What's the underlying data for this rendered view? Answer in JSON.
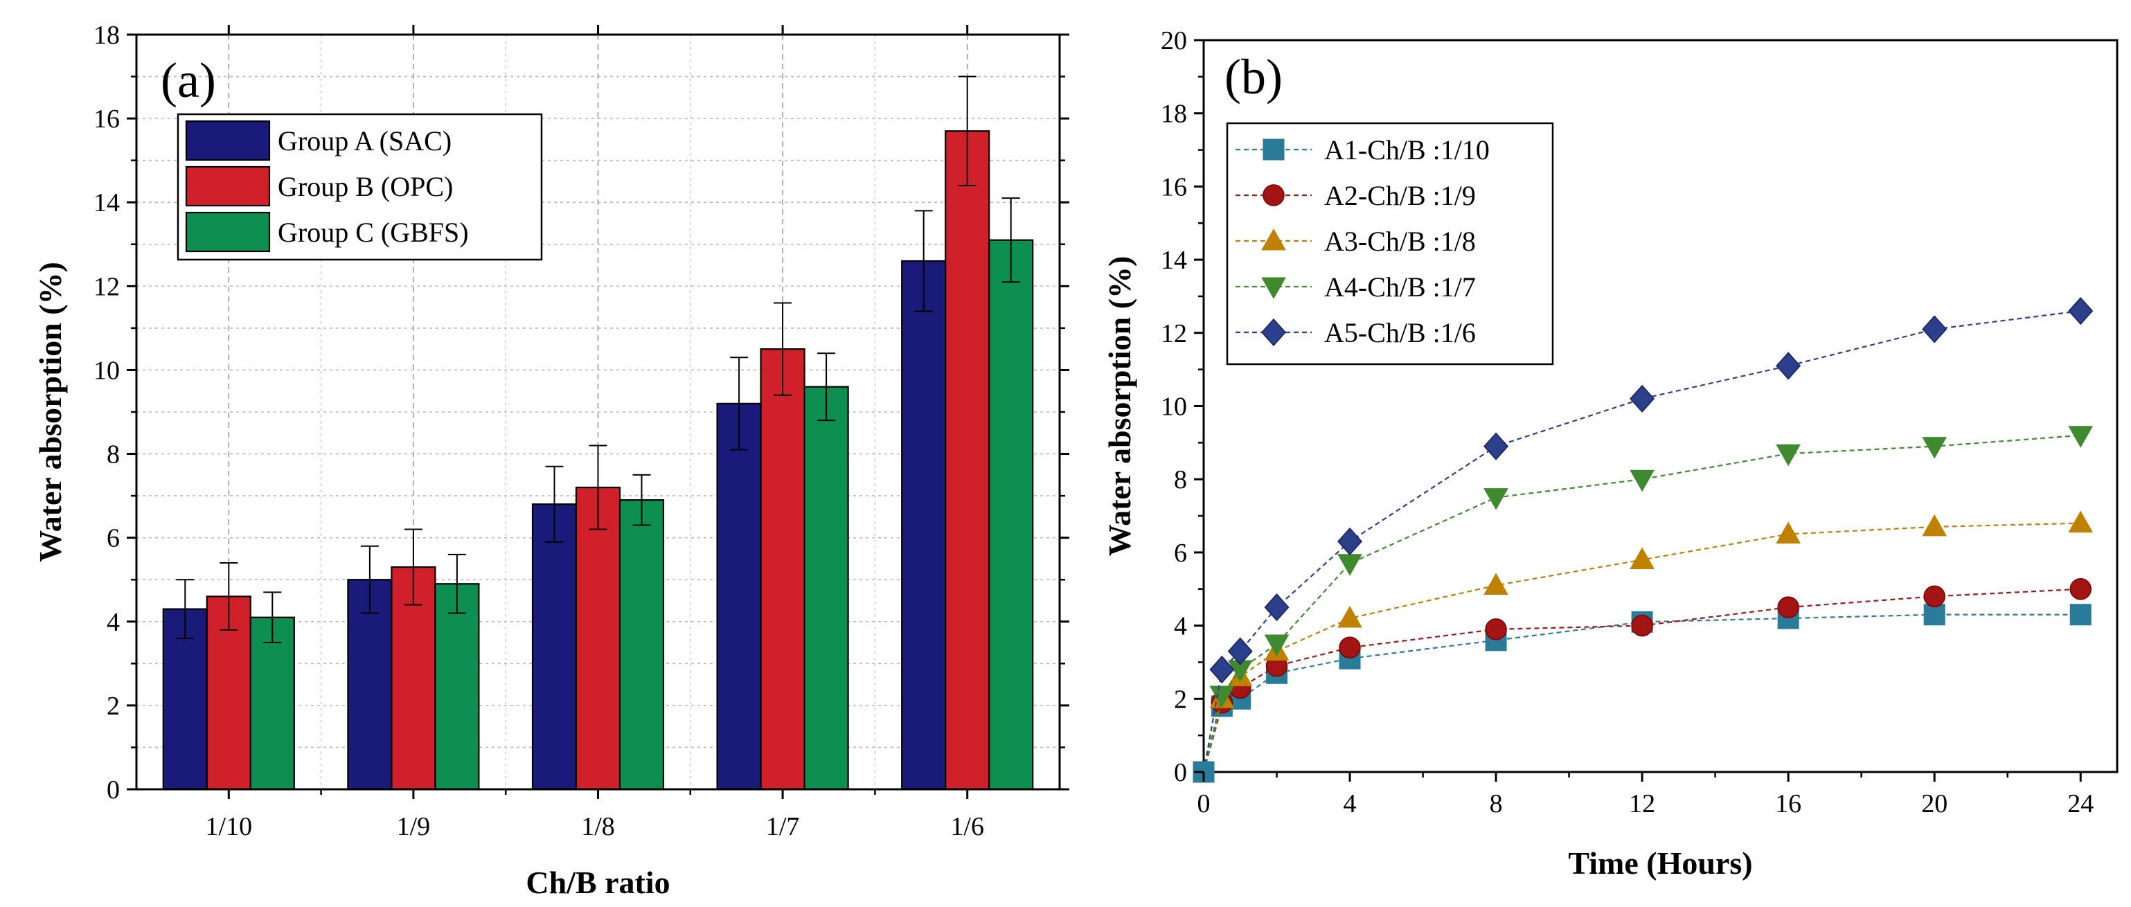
{
  "chart_data": [
    {
      "panel": "(a)",
      "type": "bar",
      "xlabel": "Ch/B ratio",
      "ylabel": "Water absorption (%)",
      "ylim": [
        0,
        18
      ],
      "yticks": [
        0,
        2,
        4,
        6,
        8,
        10,
        12,
        14,
        16,
        18
      ],
      "grid": true,
      "legend_position": "top-left",
      "categories": [
        "1/10",
        "1/9",
        "1/8",
        "1/7",
        "1/6"
      ],
      "series": [
        {
          "name": "Group A (SAC)",
          "color": "#1a1a7a",
          "values": [
            4.3,
            5.0,
            6.8,
            9.2,
            12.6
          ],
          "errors": [
            0.7,
            0.8,
            0.9,
            1.1,
            1.2
          ]
        },
        {
          "name": "Group B (OPC)",
          "color": "#d0202a",
          "values": [
            4.6,
            5.3,
            7.2,
            10.5,
            15.7
          ],
          "errors": [
            0.8,
            0.9,
            1.0,
            1.1,
            1.3
          ]
        },
        {
          "name": "Group C (GBFS)",
          "color": "#0e8f52",
          "values": [
            4.1,
            4.9,
            6.9,
            9.6,
            13.1
          ],
          "errors": [
            0.6,
            0.7,
            0.6,
            0.8,
            1.0
          ]
        }
      ]
    },
    {
      "panel": "(b)",
      "type": "line",
      "xlabel": "Time (Hours)",
      "ylabel": "Water absorption (%)",
      "xlim": [
        0,
        25
      ],
      "ylim": [
        0,
        20
      ],
      "xticks": [
        0,
        4,
        8,
        12,
        16,
        20,
        24
      ],
      "yticks": [
        0,
        2,
        4,
        6,
        8,
        10,
        12,
        14,
        16,
        18,
        20
      ],
      "grid": false,
      "legend_position": "top-left",
      "x": [
        0,
        0.5,
        1,
        2,
        4,
        8,
        12,
        16,
        20,
        24
      ],
      "series": [
        {
          "name": "A1-Ch/B :1/10",
          "marker": "square",
          "color": "#2a7a9a",
          "values": [
            0,
            1.8,
            2.0,
            2.7,
            3.1,
            3.6,
            4.1,
            4.2,
            4.3,
            4.3
          ]
        },
        {
          "name": "A2-Ch/B :1/9",
          "marker": "circle",
          "color": "#a31515",
          "values": [
            0,
            1.9,
            2.3,
            2.9,
            3.4,
            3.9,
            4.0,
            4.5,
            4.8,
            5.0
          ]
        },
        {
          "name": "A3-Ch/B :1/8",
          "marker": "triangle-up",
          "color": "#c08000",
          "values": [
            0,
            2.0,
            2.6,
            3.3,
            4.2,
            5.1,
            5.8,
            6.5,
            6.7,
            6.8
          ]
        },
        {
          "name": "A4-Ch/B :1/7",
          "marker": "triangle-down",
          "color": "#3f8a2e",
          "values": [
            0,
            2.1,
            2.8,
            3.5,
            5.7,
            7.5,
            8.0,
            8.7,
            8.9,
            9.2
          ]
        },
        {
          "name": "A5-Ch/B :1/6",
          "marker": "diamond",
          "color": "#2b3f8a",
          "values": [
            0,
            2.8,
            3.3,
            4.5,
            6.3,
            8.9,
            10.2,
            11.1,
            12.1,
            12.6
          ]
        }
      ]
    }
  ]
}
